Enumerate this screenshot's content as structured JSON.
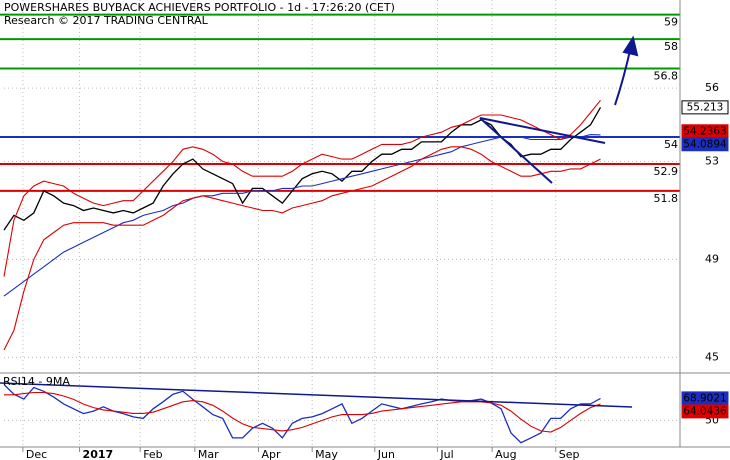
{
  "chart_data": [
    {
      "type": "line",
      "title": "POWERSHARES BUYBACK ACHIEVERS PORTFOLIO - 1d - 17:26:20 (CET)",
      "subtitle": "Research © 2017 TRADING CENTRAL",
      "x": [
        0,
        1,
        2,
        3,
        4,
        5,
        6,
        7,
        8,
        9,
        10,
        11,
        12,
        13,
        14,
        15,
        16,
        17,
        18,
        19,
        20,
        21,
        22,
        23,
        24,
        25,
        26,
        27,
        28,
        29,
        30,
        31,
        32,
        33,
        34,
        35,
        36,
        37,
        38,
        39,
        40,
        41,
        42,
        43,
        44,
        45,
        46,
        47,
        48,
        49,
        50,
        51,
        52,
        53,
        54,
        55,
        56,
        57,
        58,
        59,
        60
      ],
      "xlim": [
        0,
        68
      ],
      "xticks": [
        {
          "value": 1.9,
          "label": "Dec"
        },
        {
          "value": 7.6,
          "label": "2017"
        },
        {
          "value": 13.7,
          "label": "Feb"
        },
        {
          "value": 19.2,
          "label": "Mar"
        },
        {
          "value": 25.6,
          "label": "Apr"
        },
        {
          "value": 31,
          "label": "May"
        },
        {
          "value": 37.3,
          "label": "Jun"
        },
        {
          "value": 43.6,
          "label": "Jul"
        },
        {
          "value": 49.1,
          "label": "Aug"
        },
        {
          "value": 55.5,
          "label": "Sep"
        }
      ],
      "ylim": [
        44.4,
        59.6
      ],
      "yticks": [
        45,
        49,
        53,
        56
      ],
      "grid": true,
      "series": [
        {
          "color": "#000000",
          "last_label": true,
          "values": [
            50.2,
            50.8,
            50.6,
            50.9,
            51.8,
            51.6,
            51.3,
            51.2,
            51.0,
            51.1,
            51.0,
            50.9,
            51.0,
            50.9,
            51.1,
            51.3,
            52.0,
            52.5,
            52.9,
            53.1,
            52.7,
            52.5,
            52.3,
            52.1,
            51.3,
            51.9,
            51.9,
            51.6,
            51.3,
            51.8,
            52.3,
            52.5,
            52.6,
            52.5,
            52.2,
            52.6,
            52.6,
            53.0,
            53.3,
            53.3,
            53.5,
            53.5,
            53.8,
            53.8,
            53.8,
            54.2,
            54.5,
            54.5,
            54.7,
            54.5,
            54.0,
            53.7,
            53.2,
            53.3,
            53.3,
            53.5,
            53.5,
            53.9,
            54.2,
            54.5,
            55.213
          ]
        },
        {
          "color": "#1a2fc0",
          "last_label": true,
          "values": [
            47.5,
            47.8,
            48.1,
            48.4,
            48.7,
            49.0,
            49.3,
            49.5,
            49.7,
            49.9,
            50.1,
            50.3,
            50.5,
            50.6,
            50.8,
            50.9,
            51.0,
            51.2,
            51.3,
            51.5,
            51.6,
            51.6,
            51.7,
            51.7,
            51.7,
            51.8,
            51.8,
            51.8,
            51.9,
            51.9,
            52.0,
            52.0,
            52.1,
            52.2,
            52.3,
            52.4,
            52.5,
            52.6,
            52.7,
            52.8,
            52.9,
            53.0,
            53.1,
            53.2,
            53.3,
            53.4,
            53.6,
            53.7,
            53.8,
            53.9,
            54.0,
            54.0,
            54.0,
            53.9,
            53.9,
            53.9,
            53.9,
            54.0,
            54.0,
            54.1,
            54.0894
          ]
        },
        {
          "color": "#dd0000",
          "values": [
            48.3,
            50.6,
            51.6,
            52.0,
            52.2,
            52.1,
            52.0,
            51.7,
            51.5,
            51.3,
            51.2,
            51.3,
            51.4,
            51.4,
            51.8,
            52.2,
            52.6,
            53.0,
            53.5,
            53.6,
            53.5,
            53.3,
            53.0,
            52.9,
            52.6,
            52.4,
            52.4,
            52.4,
            52.4,
            52.6,
            52.9,
            53.1,
            53.3,
            53.2,
            53.1,
            53.1,
            53.3,
            53.5,
            53.7,
            53.7,
            53.7,
            53.8,
            54.0,
            54.1,
            54.2,
            54.4,
            54.5,
            54.7,
            54.9,
            54.9,
            54.9,
            54.8,
            54.7,
            54.5,
            54.3,
            54.1,
            53.9,
            54.1,
            54.5,
            55.0,
            55.5
          ]
        },
        {
          "color": "#dd0000",
          "values": [
            45.3,
            46.1,
            47.7,
            49.0,
            49.8,
            50.1,
            50.4,
            50.5,
            50.5,
            50.5,
            50.5,
            50.4,
            50.4,
            50.4,
            50.4,
            50.6,
            50.8,
            51.1,
            51.4,
            51.5,
            51.6,
            51.5,
            51.4,
            51.3,
            51.2,
            51.1,
            51.0,
            51.0,
            50.9,
            51.1,
            51.2,
            51.3,
            51.4,
            51.6,
            51.7,
            51.8,
            51.9,
            52.0,
            52.2,
            52.4,
            52.6,
            52.8,
            53.1,
            53.3,
            53.5,
            53.6,
            53.6,
            53.5,
            53.3,
            53.0,
            52.8,
            52.6,
            52.4,
            52.4,
            52.5,
            52.6,
            52.6,
            52.7,
            52.7,
            52.9,
            53.1
          ]
        }
      ],
      "levels": [
        {
          "value": 59,
          "color": "#009900"
        },
        {
          "value": 58,
          "color": "#009900"
        },
        {
          "value": 56.8,
          "color": "#009900"
        },
        {
          "value": 54,
          "color": "#1a2fc0"
        },
        {
          "value": 52.9,
          "color": "#dd0000"
        },
        {
          "value": 51.8,
          "color": "#dd0000"
        }
      ],
      "markers": [
        {
          "value": 54.2363,
          "color": "#dd0000"
        }
      ]
    },
    {
      "type": "line",
      "title": "RSI14 - 9MA",
      "x": [
        0,
        1,
        2,
        3,
        4,
        5,
        6,
        7,
        8,
        9,
        10,
        11,
        12,
        13,
        14,
        15,
        16,
        17,
        18,
        19,
        20,
        21,
        22,
        23,
        24,
        25,
        26,
        27,
        28,
        29,
        30,
        31,
        32,
        33,
        34,
        35,
        36,
        37,
        38,
        39,
        40,
        41,
        42,
        43,
        44,
        45,
        46,
        47,
        48,
        49,
        50,
        51,
        52,
        53,
        54,
        55,
        56,
        57,
        58,
        59,
        60
      ],
      "xlim": [
        0,
        68
      ],
      "ylim": [
        28,
        89
      ],
      "yticks": [
        50
      ],
      "grid": true,
      "series": [
        {
          "color": "#1a2fc0",
          "last_label": true,
          "values": [
            80.8,
            72.5,
            68.3,
            78.3,
            75.0,
            70.0,
            64.2,
            60.0,
            55.8,
            58.0,
            61.7,
            58.0,
            55.8,
            53.0,
            51.7,
            60.0,
            66.0,
            72.5,
            75.0,
            68.0,
            61.7,
            55.0,
            51.7,
            35.0,
            35.0,
            43.3,
            47.5,
            43.3,
            35.0,
            47.5,
            51.7,
            53.0,
            55.8,
            60.0,
            64.2,
            47.5,
            51.7,
            58.0,
            64.2,
            62.0,
            60.0,
            62.0,
            64.2,
            66.0,
            68.3,
            67.0,
            66.5,
            67.0,
            68.3,
            65.0,
            60.0,
            39.2,
            30.8,
            35.0,
            39.2,
            51.7,
            51.7,
            60.0,
            64.2,
            64.2,
            68.9021
          ]
        },
        {
          "color": "#dd0000",
          "last_label": true,
          "values": [
            72,
            72,
            73,
            74,
            74,
            73,
            71,
            68,
            64,
            61,
            59,
            58,
            57,
            56,
            56,
            57,
            60,
            63,
            66,
            67,
            66,
            63,
            58,
            52,
            47,
            44,
            43,
            42,
            41,
            42,
            44,
            47,
            50,
            53,
            55,
            55,
            55,
            56,
            58,
            59,
            60,
            61,
            62,
            63,
            64,
            65,
            66,
            66,
            66,
            65,
            63,
            58,
            51,
            45,
            41,
            40,
            44,
            50,
            56,
            61,
            64.0436
          ]
        }
      ]
    }
  ]
}
